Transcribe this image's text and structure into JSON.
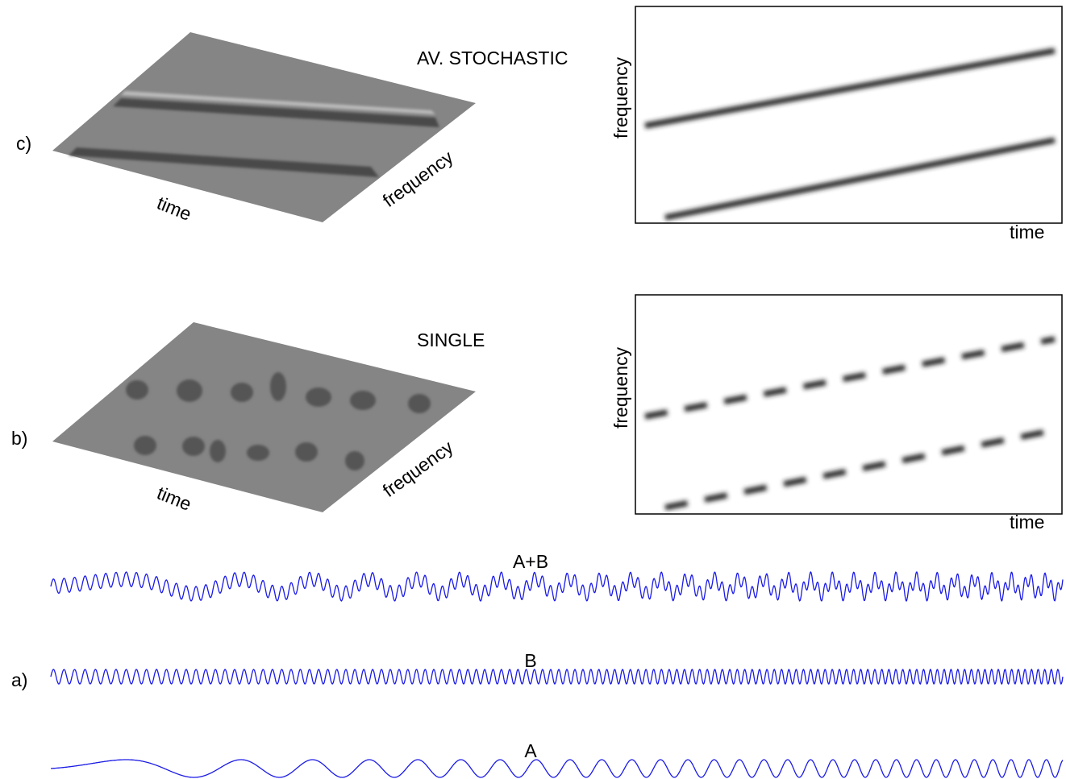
{
  "panels": [
    {
      "label": "c)",
      "title": "AV. STOCHASTIC",
      "surface_x_label": "time",
      "surface_y_label": "frequency",
      "map_x_label": "time",
      "map_y_label": "frequency"
    },
    {
      "label": "b)",
      "title": "SINGLE",
      "surface_x_label": "time",
      "surface_y_label": "frequency",
      "map_x_label": "time",
      "map_y_label": "frequency"
    }
  ],
  "signals": {
    "label": "a)",
    "traces": [
      "A+B",
      "B",
      "A"
    ]
  }
}
